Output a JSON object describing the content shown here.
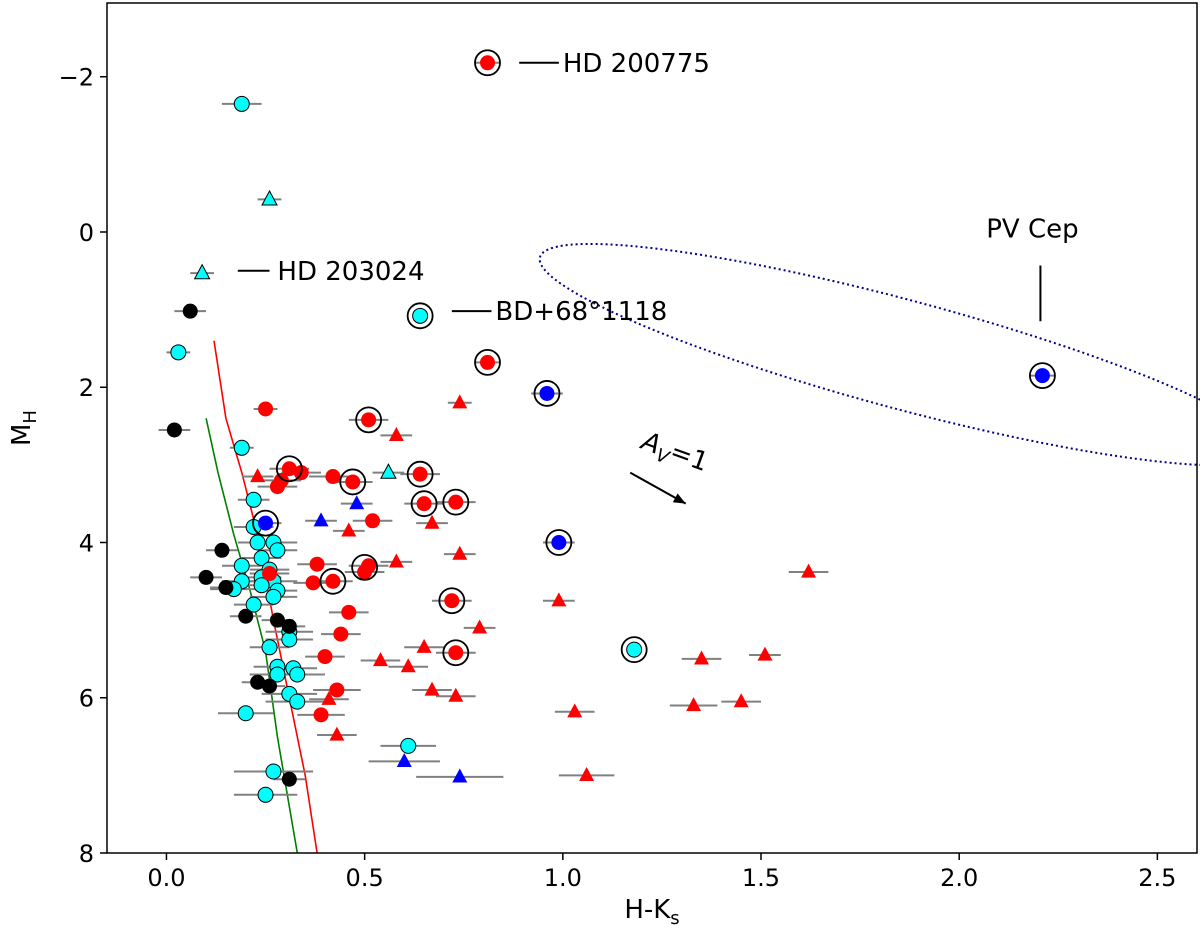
{
  "chart_data": {
    "type": "scatter",
    "title": "",
    "xlabel": "H-K",
    "xlabel_sub": "s",
    "ylabel": "M",
    "ylabel_sub": "H",
    "xlim": [
      -0.15,
      2.6
    ],
    "ylim": [
      8,
      -2.95
    ],
    "y_inverted": true,
    "grid": false,
    "x_ticks": [
      0.0,
      0.5,
      1.0,
      1.5,
      2.0,
      2.5
    ],
    "x_tick_labels": [
      "0.0",
      "0.5",
      "1.0",
      "1.5",
      "2.0",
      "2.5"
    ],
    "y_ticks": [
      -2,
      0,
      2,
      4,
      6,
      8
    ],
    "y_tick_labels": [
      "−2",
      "0",
      "2",
      "4",
      "6",
      "8"
    ],
    "colors": {
      "red": "#ff0000",
      "cyan": "#00ffff",
      "blue": "#0000ff",
      "black": "#000000",
      "errorbar": "#808080",
      "red_curve": "#ff0000",
      "green_curve": "#008000",
      "ellipse": "#00008b"
    },
    "series": [
      {
        "name": "cyan circles",
        "marker": "circle",
        "color": "cyan",
        "points": [
          {
            "x": 0.19,
            "y": -1.65,
            "xerr": 0.05
          },
          {
            "x": 0.03,
            "y": 1.55,
            "xerr": 0.03
          },
          {
            "x": 0.19,
            "y": 2.78,
            "xerr": 0.03
          },
          {
            "x": 0.22,
            "y": 3.45,
            "xerr": 0.04
          },
          {
            "x": 0.22,
            "y": 3.8,
            "xerr": 0.05
          },
          {
            "x": 0.27,
            "y": 4.0,
            "xerr": 0.06
          },
          {
            "x": 0.23,
            "y": 4.0,
            "xerr": 0.05
          },
          {
            "x": 0.28,
            "y": 4.1,
            "xerr": 0.05
          },
          {
            "x": 0.24,
            "y": 4.2,
            "xerr": 0.05
          },
          {
            "x": 0.19,
            "y": 4.3,
            "xerr": 0.05
          },
          {
            "x": 0.26,
            "y": 4.35,
            "xerr": 0.05
          },
          {
            "x": 0.24,
            "y": 4.45,
            "xerr": 0.05
          },
          {
            "x": 0.27,
            "y": 4.5,
            "xerr": 0.06
          },
          {
            "x": 0.19,
            "y": 4.5,
            "xerr": 0.05
          },
          {
            "x": 0.24,
            "y": 4.55,
            "xerr": 0.05
          },
          {
            "x": 0.17,
            "y": 4.6,
            "xerr": 0.06
          },
          {
            "x": 0.28,
            "y": 4.62,
            "xerr": 0.05
          },
          {
            "x": 0.27,
            "y": 4.7,
            "xerr": 0.06
          },
          {
            "x": 0.22,
            "y": 4.8,
            "xerr": 0.05
          },
          {
            "x": 0.31,
            "y": 5.15,
            "xerr": 0.06
          },
          {
            "x": 0.31,
            "y": 5.25,
            "xerr": 0.06
          },
          {
            "x": 0.26,
            "y": 5.35,
            "xerr": 0.05
          },
          {
            "x": 0.28,
            "y": 5.6,
            "xerr": 0.06
          },
          {
            "x": 0.32,
            "y": 5.62,
            "xerr": 0.06
          },
          {
            "x": 0.28,
            "y": 5.7,
            "xerr": 0.07
          },
          {
            "x": 0.33,
            "y": 5.7,
            "xerr": 0.07
          },
          {
            "x": 0.31,
            "y": 5.95,
            "xerr": 0.07
          },
          {
            "x": 0.33,
            "y": 6.05,
            "xerr": 0.08
          },
          {
            "x": 0.2,
            "y": 6.2,
            "xerr": 0.07
          },
          {
            "x": 0.61,
            "y": 6.62,
            "xerr": 0.07
          },
          {
            "x": 0.27,
            "y": 6.95,
            "xerr": 0.1
          },
          {
            "x": 0.25,
            "y": 7.25,
            "xerr": 0.08
          }
        ]
      },
      {
        "name": "cyan triangles",
        "marker": "triangle",
        "color": "cyan",
        "points": [
          {
            "x": 0.26,
            "y": -0.42,
            "xerr": 0.03
          },
          {
            "x": 0.09,
            "y": 0.53,
            "xerr": 0.03
          },
          {
            "x": 0.56,
            "y": 3.1,
            "xerr": 0.04
          }
        ]
      },
      {
        "name": "black circles",
        "marker": "circle",
        "color": "black",
        "points": [
          {
            "x": 0.06,
            "y": 1.02,
            "xerr": 0.04
          },
          {
            "x": 0.02,
            "y": 2.55,
            "xerr": 0.04
          },
          {
            "x": 0.14,
            "y": 4.1,
            "xerr": 0.04
          },
          {
            "x": 0.1,
            "y": 4.45,
            "xerr": 0.04
          },
          {
            "x": 0.15,
            "y": 4.58,
            "xerr": 0.04
          },
          {
            "x": 0.2,
            "y": 4.95,
            "xerr": 0.04
          },
          {
            "x": 0.28,
            "y": 5.0,
            "xerr": 0.04
          },
          {
            "x": 0.31,
            "y": 5.08,
            "xerr": 0.04
          },
          {
            "x": 0.23,
            "y": 5.8,
            "xerr": 0.04
          },
          {
            "x": 0.26,
            "y": 5.85,
            "xerr": 0.04
          },
          {
            "x": 0.31,
            "y": 7.05,
            "xerr": 0.04
          }
        ]
      },
      {
        "name": "red circles",
        "marker": "circle",
        "color": "red",
        "points": [
          {
            "x": 0.81,
            "y": -2.18,
            "xerr": 0.03
          },
          {
            "x": 0.81,
            "y": 1.68,
            "xerr": 0.03
          },
          {
            "x": 0.25,
            "y": 2.28,
            "xerr": 0.03
          },
          {
            "x": 0.51,
            "y": 2.42,
            "xerr": 0.05
          },
          {
            "x": 0.31,
            "y": 3.05,
            "xerr": 0.05
          },
          {
            "x": 0.34,
            "y": 3.1,
            "xerr": 0.05
          },
          {
            "x": 0.42,
            "y": 3.15,
            "xerr": 0.06
          },
          {
            "x": 0.64,
            "y": 3.12,
            "xerr": 0.05
          },
          {
            "x": 0.29,
            "y": 3.2,
            "xerr": 0.05
          },
          {
            "x": 0.47,
            "y": 3.22,
            "xerr": 0.05
          },
          {
            "x": 0.28,
            "y": 3.28,
            "xerr": 0.05
          },
          {
            "x": 0.65,
            "y": 3.5,
            "xerr": 0.05
          },
          {
            "x": 0.73,
            "y": 3.48,
            "xerr": 0.05
          },
          {
            "x": 0.52,
            "y": 3.72,
            "xerr": 0.05
          },
          {
            "x": 0.38,
            "y": 4.28,
            "xerr": 0.05
          },
          {
            "x": 0.51,
            "y": 4.3,
            "xerr": 0.05
          },
          {
            "x": 0.5,
            "y": 4.38,
            "xerr": 0.05
          },
          {
            "x": 0.26,
            "y": 4.4,
            "xerr": 0.05
          },
          {
            "x": 0.42,
            "y": 4.5,
            "xerr": 0.05
          },
          {
            "x": 0.37,
            "y": 4.52,
            "xerr": 0.05
          },
          {
            "x": 0.72,
            "y": 4.75,
            "xerr": 0.05
          },
          {
            "x": 0.46,
            "y": 4.9,
            "xerr": 0.05
          },
          {
            "x": 0.44,
            "y": 5.18,
            "xerr": 0.05
          },
          {
            "x": 0.73,
            "y": 5.42,
            "xerr": 0.05
          },
          {
            "x": 0.4,
            "y": 5.47,
            "xerr": 0.05
          },
          {
            "x": 0.43,
            "y": 5.9,
            "xerr": 0.06
          },
          {
            "x": 0.39,
            "y": 6.22,
            "xerr": 0.06
          }
        ]
      },
      {
        "name": "red triangles",
        "marker": "triangle",
        "color": "red",
        "points": [
          {
            "x": 0.74,
            "y": 2.2,
            "xerr": 0.03
          },
          {
            "x": 0.58,
            "y": 2.62,
            "xerr": 0.04
          },
          {
            "x": 0.23,
            "y": 3.15,
            "xerr": 0.04
          },
          {
            "x": 0.67,
            "y": 3.75,
            "xerr": 0.04
          },
          {
            "x": 0.46,
            "y": 3.85,
            "xerr": 0.04
          },
          {
            "x": 0.74,
            "y": 4.15,
            "xerr": 0.04
          },
          {
            "x": 0.58,
            "y": 4.25,
            "xerr": 0.04
          },
          {
            "x": 1.62,
            "y": 4.38,
            "xerr": 0.05
          },
          {
            "x": 0.99,
            "y": 4.75,
            "xerr": 0.04
          },
          {
            "x": 0.79,
            "y": 5.1,
            "xerr": 0.04
          },
          {
            "x": 0.65,
            "y": 5.35,
            "xerr": 0.05
          },
          {
            "x": 0.54,
            "y": 5.52,
            "xerr": 0.05
          },
          {
            "x": 1.51,
            "y": 5.45,
            "xerr": 0.04
          },
          {
            "x": 1.35,
            "y": 5.5,
            "xerr": 0.05
          },
          {
            "x": 0.61,
            "y": 5.6,
            "xerr": 0.05
          },
          {
            "x": 0.67,
            "y": 5.9,
            "xerr": 0.05
          },
          {
            "x": 0.73,
            "y": 5.98,
            "xerr": 0.05
          },
          {
            "x": 0.41,
            "y": 6.02,
            "xerr": 0.05
          },
          {
            "x": 1.45,
            "y": 6.05,
            "xerr": 0.05
          },
          {
            "x": 1.33,
            "y": 6.1,
            "xerr": 0.06
          },
          {
            "x": 1.03,
            "y": 6.18,
            "xerr": 0.05
          },
          {
            "x": 0.43,
            "y": 6.48,
            "xerr": 0.05
          },
          {
            "x": 1.06,
            "y": 7.0,
            "xerr": 0.07
          }
        ]
      },
      {
        "name": "blue circles",
        "marker": "circle",
        "color": "blue",
        "points": [
          {
            "x": 0.96,
            "y": 2.08,
            "xerr": 0.04
          },
          {
            "x": 2.21,
            "y": 1.85,
            "xerr": 0.03
          },
          {
            "x": 0.25,
            "y": 3.75,
            "xerr": 0.04
          },
          {
            "x": 0.99,
            "y": 4.0,
            "xerr": 0.04
          }
        ]
      },
      {
        "name": "blue triangles",
        "marker": "triangle",
        "color": "blue",
        "points": [
          {
            "x": 0.48,
            "y": 3.5,
            "xerr": 0.04
          },
          {
            "x": 0.39,
            "y": 3.72,
            "xerr": 0.04
          },
          {
            "x": 0.6,
            "y": 6.82,
            "xerr": 0.09
          },
          {
            "x": 0.74,
            "y": 7.02,
            "xerr": 0.11
          }
        ]
      }
    ],
    "ringed_points": [
      {
        "x": 0.81,
        "y": -2.18
      },
      {
        "x": 0.64,
        "y": 1.08
      },
      {
        "x": 0.81,
        "y": 1.68
      },
      {
        "x": 0.96,
        "y": 2.08
      },
      {
        "x": 2.21,
        "y": 1.85
      },
      {
        "x": 0.51,
        "y": 2.42
      },
      {
        "x": 0.31,
        "y": 3.05
      },
      {
        "x": 0.64,
        "y": 3.12
      },
      {
        "x": 0.47,
        "y": 3.22
      },
      {
        "x": 0.65,
        "y": 3.5
      },
      {
        "x": 0.73,
        "y": 3.48
      },
      {
        "x": 0.25,
        "y": 3.75
      },
      {
        "x": 0.99,
        "y": 4.0
      },
      {
        "x": 0.5,
        "y": 4.32
      },
      {
        "x": 0.42,
        "y": 4.5
      },
      {
        "x": 0.72,
        "y": 4.75
      },
      {
        "x": 0.73,
        "y": 5.42
      },
      {
        "x": 1.18,
        "y": 5.38
      }
    ],
    "ringed_fill_points": [
      {
        "x": 0.64,
        "y": 1.08,
        "color": "cyan"
      },
      {
        "x": 1.18,
        "y": 5.38,
        "color": "cyan"
      }
    ],
    "curves": [
      {
        "name": "red-isochrone",
        "color": "red_curve",
        "points": [
          [
            0.12,
            1.4
          ],
          [
            0.15,
            2.4
          ],
          [
            0.19,
            3.1
          ],
          [
            0.23,
            3.9
          ],
          [
            0.27,
            5.0
          ],
          [
            0.31,
            6.0
          ],
          [
            0.35,
            7.0
          ],
          [
            0.38,
            8.0
          ]
        ]
      },
      {
        "name": "green-isochrone",
        "color": "green_curve",
        "points": [
          [
            0.1,
            2.4
          ],
          [
            0.13,
            3.1
          ],
          [
            0.17,
            3.9
          ],
          [
            0.21,
            4.6
          ],
          [
            0.25,
            5.4
          ],
          [
            0.28,
            6.5
          ],
          [
            0.31,
            7.4
          ],
          [
            0.33,
            8.0
          ]
        ]
      }
    ],
    "ellipse": {
      "cx": 1.86,
      "cy": 1.58,
      "rx_data": 0.95,
      "ry_data": 0.7,
      "rotation_deg": 15
    },
    "annotations": [
      {
        "id": "hd200775",
        "text": "HD 200775",
        "x": 1.0,
        "y": -2.18,
        "line_from_x": 0.89,
        "line_to_x": 0.99
      },
      {
        "id": "hd203024",
        "text": "HD 203024",
        "x": 0.28,
        "y": 0.5,
        "line_from_x": 0.18,
        "line_to_x": 0.26
      },
      {
        "id": "bd68",
        "text": "BD+68°1118",
        "x": 0.83,
        "y": 1.02,
        "line_from_x": 0.72,
        "line_to_x": 0.82
      },
      {
        "id": "pvcep",
        "text": "PV Cep",
        "x": 2.2,
        "y": 0.2
      }
    ],
    "arrow": {
      "label": "A",
      "label_sub": "V",
      "label_suffix": "=1",
      "from": [
        1.17,
        3.1
      ],
      "to": [
        1.31,
        3.5
      ]
    }
  }
}
